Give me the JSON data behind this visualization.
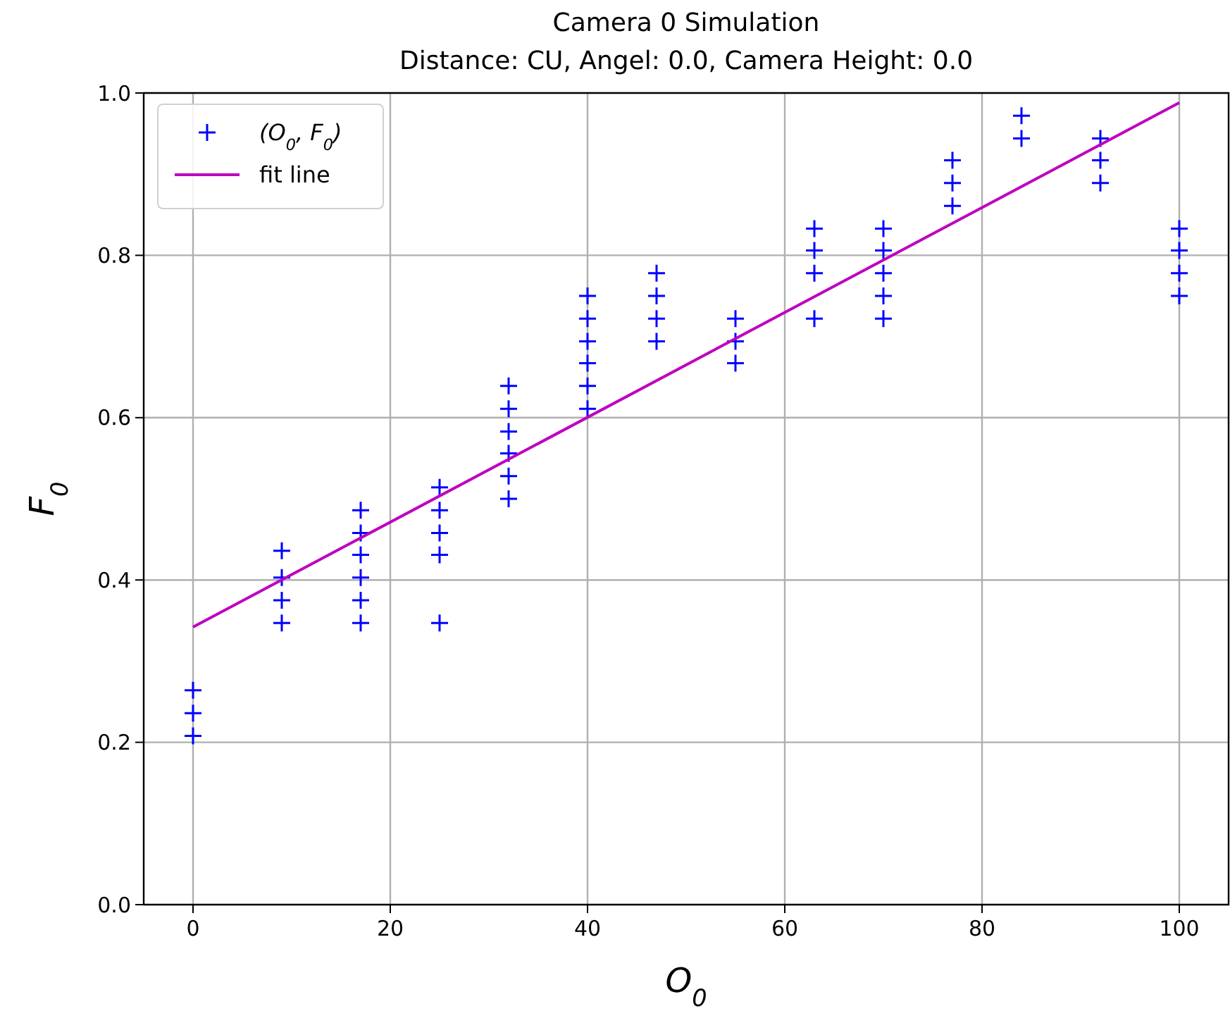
{
  "chart_data": {
    "type": "scatter",
    "title": "Camera 0 Simulation",
    "subtitle": "Distance: CU, Angel: 0.0, Camera Height: 0.0",
    "xlabel": "O$_{0}$",
    "ylabel": "F$_{0}$",
    "xlim": [
      -5,
      105
    ],
    "ylim": [
      0,
      1
    ],
    "xticks": [
      0,
      20,
      40,
      60,
      80,
      100
    ],
    "yticks": [
      {
        "value": 0,
        "label": "0.0"
      },
      {
        "value": 0.2,
        "label": "0.2"
      },
      {
        "value": 0.4,
        "label": "0.4"
      },
      {
        "value": 0.6,
        "label": "0.6"
      },
      {
        "value": 0.8,
        "label": "0.8"
      },
      {
        "value": 1,
        "label": "1.0"
      }
    ],
    "grid": true,
    "legend": "top left",
    "series": [
      {
        "name": "(O$_{0}$, F$_{0}$)",
        "marker": "cross",
        "color": "#0000ff",
        "x": [
          0,
          0,
          0,
          9,
          9,
          9,
          9,
          17,
          17,
          17,
          17,
          17,
          17,
          25,
          25,
          25,
          25,
          25,
          32,
          32,
          32,
          32,
          32,
          32,
          40,
          40,
          40,
          40,
          40,
          40,
          47,
          47,
          47,
          47,
          55,
          55,
          55,
          63,
          63,
          63,
          63,
          70,
          70,
          70,
          70,
          70,
          77,
          77,
          77,
          84,
          84,
          92,
          92,
          92,
          100,
          100,
          100,
          100
        ],
        "values": [
          0.264,
          0.236,
          0.208,
          0.436,
          0.403,
          0.375,
          0.347,
          0.486,
          0.458,
          0.431,
          0.403,
          0.375,
          0.347,
          0.514,
          0.486,
          0.458,
          0.431,
          0.347,
          0.639,
          0.611,
          0.583,
          0.556,
          0.528,
          0.5,
          0.75,
          0.722,
          0.694,
          0.667,
          0.639,
          0.611,
          0.778,
          0.75,
          0.722,
          0.694,
          0.722,
          0.694,
          0.667,
          0.833,
          0.806,
          0.778,
          0.722,
          0.833,
          0.806,
          0.778,
          0.75,
          0.722,
          0.917,
          0.889,
          0.861,
          0.972,
          0.944,
          0.944,
          0.917,
          0.889,
          0.833,
          0.806,
          0.778,
          0.75
        ]
      },
      {
        "name": "fit line",
        "type": "line",
        "marker": "none",
        "line_style": "solid",
        "color": "#bf00bf",
        "x": [
          0,
          100
        ],
        "values": [
          0.342,
          0.988
        ]
      }
    ]
  }
}
